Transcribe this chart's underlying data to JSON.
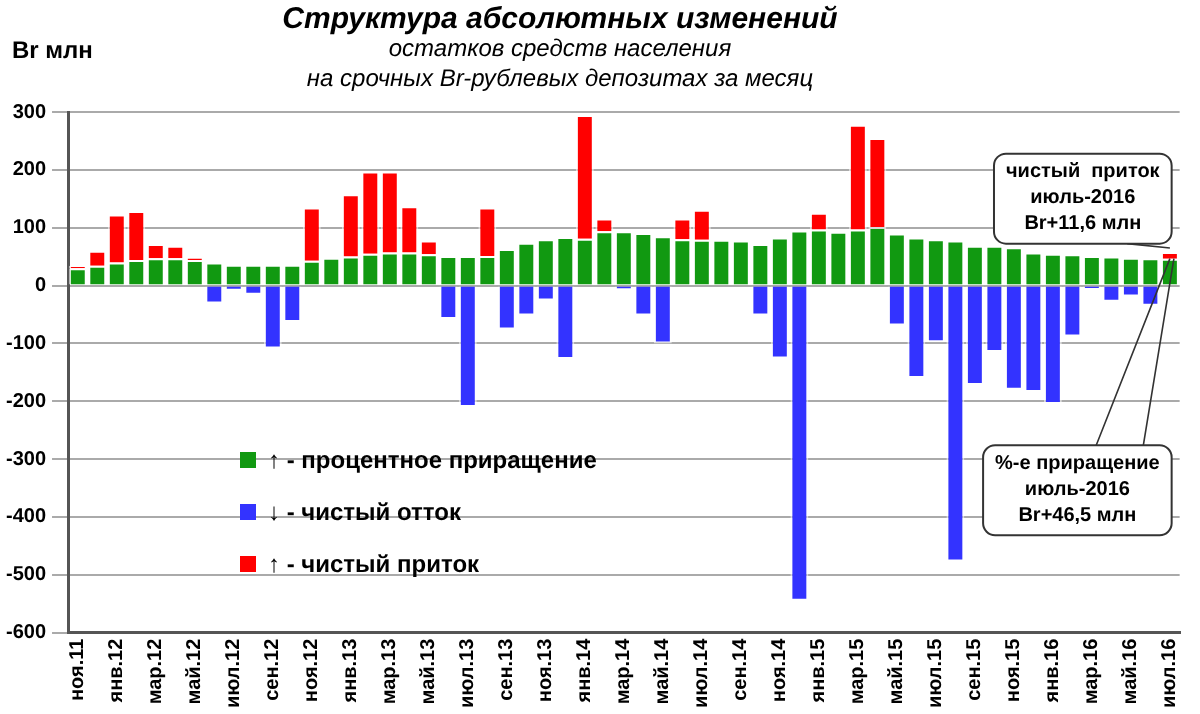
{
  "chart_data": {
    "type": "bar",
    "stacked": true,
    "title": "Структура абсолютных изменений",
    "subtitle": "остатков средств населения\nна срочных Br-рублевых депозитах за месяц",
    "ylabel": "Br млн",
    "categories": [
      "ноя.11",
      null,
      "янв.12",
      null,
      "мар.12",
      null,
      "май.12",
      null,
      "июл.12",
      null,
      "сен.12",
      null,
      "ноя.12",
      null,
      "янв.13",
      null,
      "мар.13",
      null,
      "май.13",
      null,
      "июл.13",
      null,
      "сен.13",
      null,
      "ноя.13",
      null,
      "янв.14",
      null,
      "мар.14",
      null,
      "май.14",
      null,
      "июл.14",
      null,
      "сен.14",
      null,
      "ноя.14",
      null,
      "янв.15",
      null,
      "мар.15",
      null,
      "май.15",
      null,
      "июл.15",
      null,
      "сен.15",
      null,
      "ноя.15",
      null,
      "янв.16",
      null,
      "мар.16",
      null,
      "май.16",
      null,
      "июл.16"
    ],
    "series": [
      {
        "name": "↑ - процентное приращение",
        "color": "#119911",
        "values": [
          30,
          34,
          40,
          44,
          47,
          47,
          44,
          40,
          36,
          36,
          36,
          36,
          43,
          48,
          50,
          55,
          57,
          57,
          54,
          51,
          51,
          51,
          63,
          74,
          80,
          84,
          81,
          94,
          94,
          91,
          85,
          80,
          79,
          79,
          78,
          72,
          83,
          95,
          97,
          93,
          97,
          101,
          90,
          83,
          80,
          78,
          69,
          69,
          66,
          57,
          55,
          54,
          51,
          50,
          48,
          47,
          46.5
        ]
      },
      {
        "name": "↓ - чистый отток",
        "color": "#3333ff",
        "values": [
          null,
          null,
          null,
          null,
          null,
          null,
          null,
          -31,
          -9,
          -16,
          -109,
          -63,
          null,
          null,
          null,
          null,
          null,
          null,
          null,
          -58,
          -210,
          null,
          -76,
          -52,
          -26,
          -127,
          null,
          null,
          -8,
          -52,
          -100,
          null,
          null,
          null,
          null,
          -52,
          -126,
          -545,
          null,
          null,
          null,
          null,
          -69,
          -160,
          -98,
          -477,
          -172,
          -115,
          -180,
          -184,
          -205,
          -88,
          -7,
          -28,
          -19,
          -35,
          null
        ]
      },
      {
        "name": "↑ - чистый приток",
        "color": "#ff0000",
        "values": [
          4,
          26,
          83,
          85,
          25,
          22,
          5,
          null,
          null,
          null,
          null,
          null,
          92,
          null,
          108,
          142,
          140,
          80,
          24,
          null,
          null,
          84,
          null,
          null,
          null,
          null,
          214,
          22,
          null,
          null,
          null,
          36,
          52,
          null,
          null,
          null,
          null,
          null,
          29,
          null,
          181,
          154,
          null,
          null,
          null,
          null,
          null,
          null,
          null,
          null,
          null,
          null,
          null,
          null,
          null,
          null,
          11.6
        ]
      }
    ],
    "ylim": [
      -600,
      300
    ],
    "yticks": [
      -600,
      -500,
      -400,
      -300,
      -200,
      -100,
      0,
      100,
      200,
      300
    ],
    "grid": "y",
    "legend": "bottom left",
    "annotations": [
      {
        "text": "чистый  приток\nиюль-2016\nBr+11,6 млн",
        "x": "июл.16",
        "y": 58.1
      },
      {
        "text": "%-е приращение\nиюль-2016\nBr+46,5 млн",
        "x": "июл.16",
        "y": 46.5
      }
    ]
  }
}
